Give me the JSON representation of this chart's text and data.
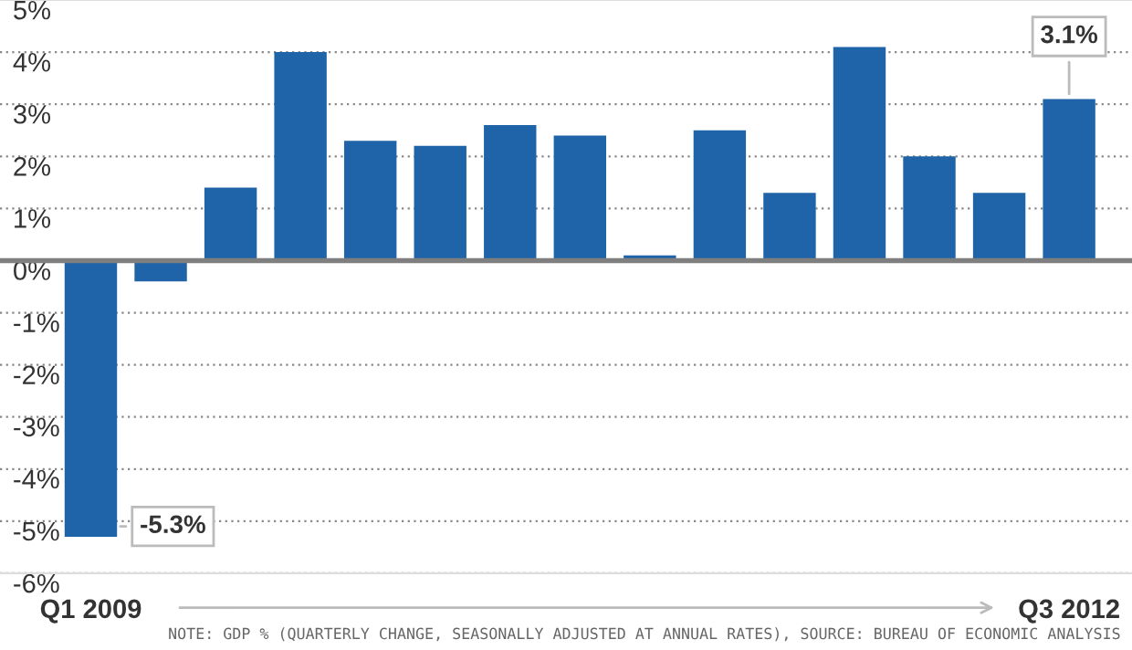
{
  "chart_data": {
    "type": "bar",
    "categories": [
      "Q1 2009",
      null,
      null,
      null,
      null,
      null,
      null,
      null,
      null,
      null,
      null,
      null,
      null,
      null,
      "Q3 2012"
    ],
    "values": [
      -5.3,
      -0.4,
      1.4,
      4.0,
      2.3,
      2.2,
      2.6,
      2.4,
      0.1,
      2.5,
      1.3,
      4.1,
      2.0,
      1.3,
      3.1
    ],
    "value_labels": [
      "-5.3%",
      null,
      null,
      null,
      null,
      null,
      null,
      null,
      null,
      null,
      null,
      null,
      null,
      null,
      "3.1%"
    ],
    "color": "#1f64a8",
    "ylim": [
      -6,
      5
    ],
    "yticks": [
      {
        "value": 5,
        "label": "5%"
      },
      {
        "value": 4,
        "label": "4%"
      },
      {
        "value": 3,
        "label": "3%"
      },
      {
        "value": 2,
        "label": "2%"
      },
      {
        "value": 1,
        "label": "1%"
      },
      {
        "value": 0,
        "label": "0%"
      },
      {
        "value": -1,
        "label": "-1%"
      },
      {
        "value": -2,
        "label": "-2%"
      },
      {
        "value": -3,
        "label": "-3%"
      },
      {
        "value": -4,
        "label": "-4%"
      },
      {
        "value": -5,
        "label": "-5%"
      },
      {
        "value": -6,
        "label": "-6%"
      }
    ],
    "grid": "y",
    "annotations": [
      "NOTE: GDP % (QUARTERLY CHANGE, SEASONALLY ADJUSTED AT ANNUAL RATES), SOURCE: BUREAU OF ECONOMIC ANALYSIS"
    ]
  }
}
